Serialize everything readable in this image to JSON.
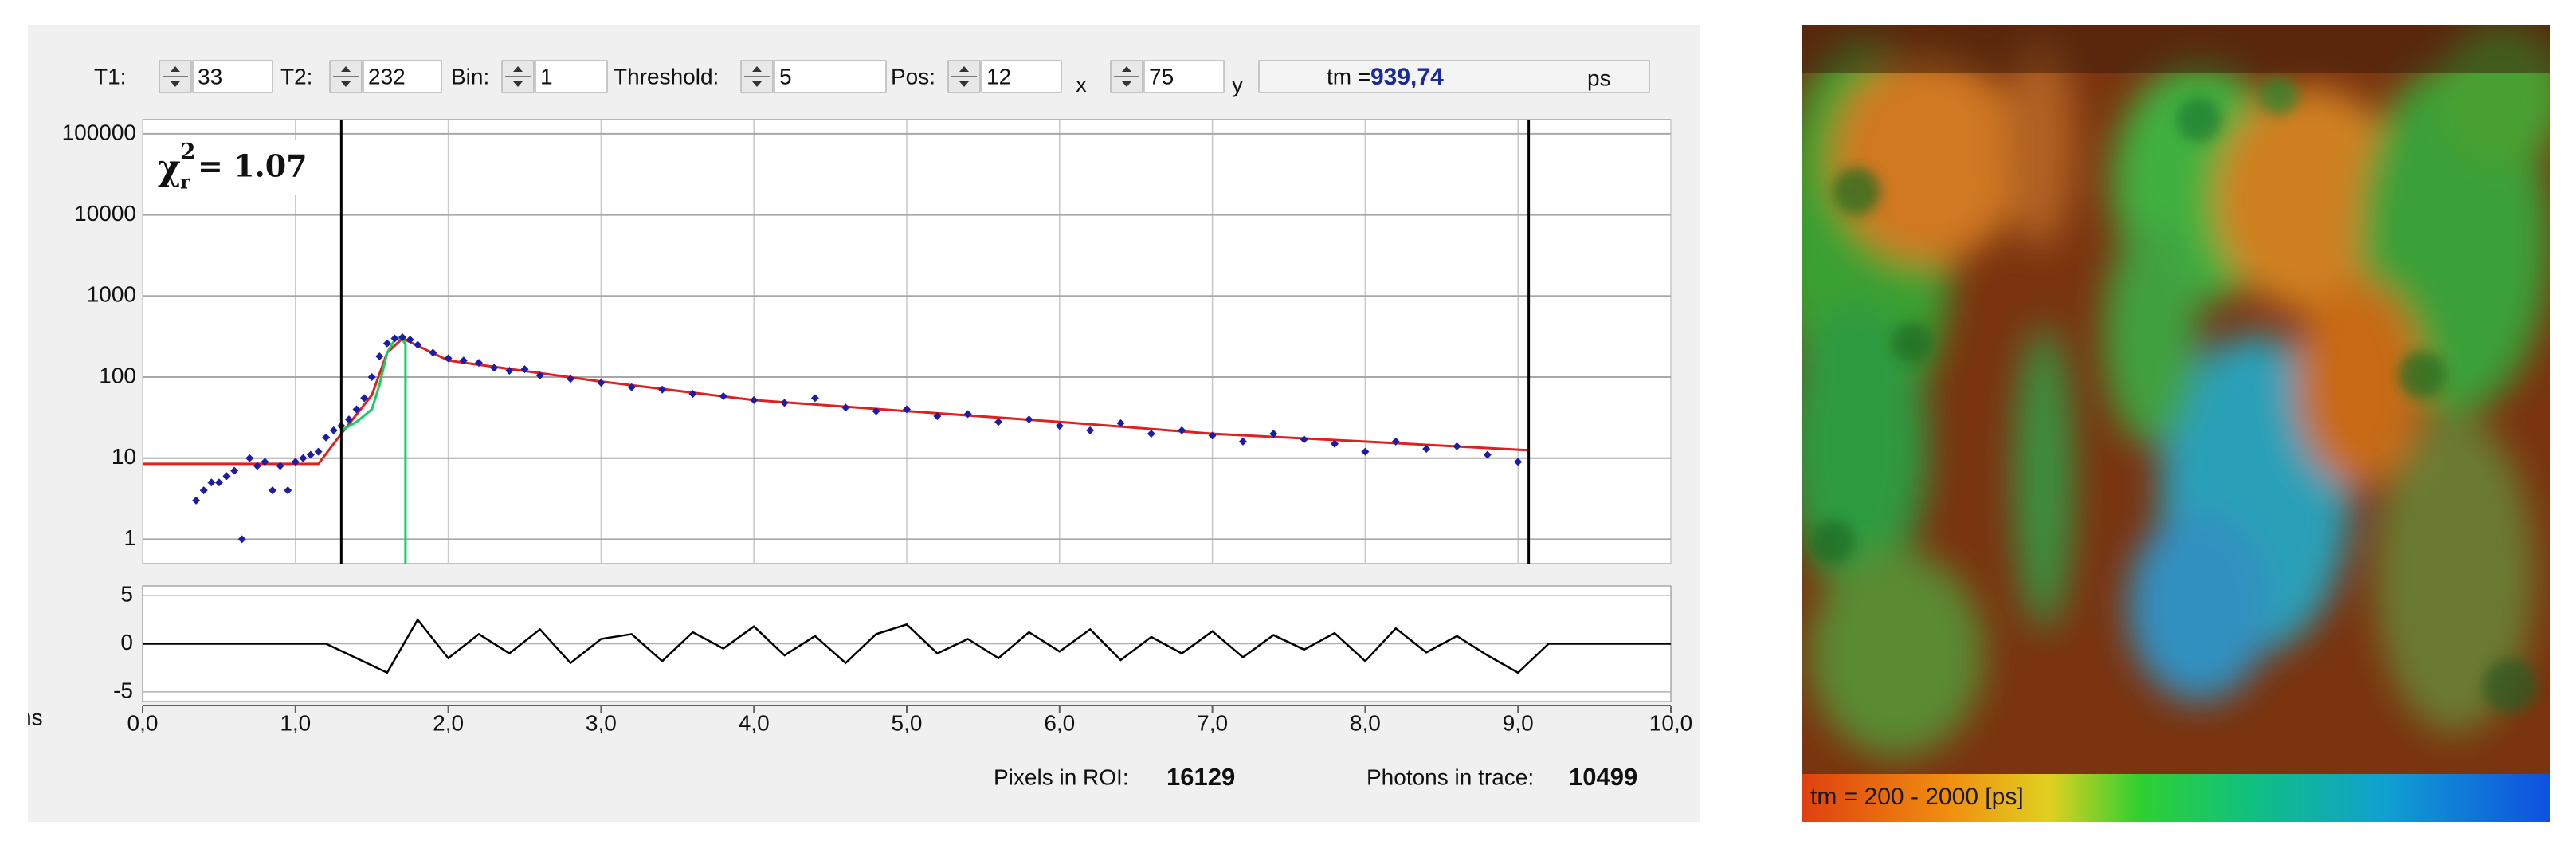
{
  "controls": [
    {
      "label": "T1:",
      "value": "33"
    },
    {
      "label": "T2:",
      "value": "232"
    },
    {
      "label": "Bin:",
      "value": "1"
    },
    {
      "label": "Threshold:",
      "value": "5"
    }
  ],
  "pos": {
    "label": "Pos:",
    "x_value": "12",
    "x_label": "x",
    "y_value": "75",
    "y_label": "y"
  },
  "tm": {
    "label": "tm =",
    "value": "939,74",
    "unit": "ps"
  },
  "chart_data": [
    {
      "type": "scatter",
      "log_y": true,
      "grid": true,
      "xlim": [
        0,
        10
      ],
      "xticks": [
        0,
        1,
        2,
        3,
        4,
        5,
        6,
        7,
        8,
        9,
        10
      ],
      "ylim": [
        0.5,
        150000
      ],
      "yticks": [
        1,
        10,
        100,
        1000,
        10000,
        100000
      ],
      "cursors": [
        1.3,
        9.07
      ],
      "cursor_color": "#000000",
      "annotation": {
        "symbol": "χ",
        "sup": "2",
        "sub": "r",
        "text": "= 1.07"
      },
      "series": [
        {
          "type": "scatter",
          "color": "#1c1ca8",
          "x": [
            0.35,
            0.4,
            0.45,
            0.5,
            0.55,
            0.6,
            0.65,
            0.7,
            0.75,
            0.8,
            0.85,
            0.9,
            0.95,
            1.0,
            1.05,
            1.1,
            1.15,
            1.2,
            1.25,
            1.3,
            1.35,
            1.4,
            1.45,
            1.5,
            1.55,
            1.6,
            1.65,
            1.7,
            1.75,
            1.8,
            1.9,
            2.0,
            2.1,
            2.2,
            2.3,
            2.4,
            2.5,
            2.6,
            2.8,
            3.0,
            3.2,
            3.4,
            3.6,
            3.8,
            4.0,
            4.2,
            4.4,
            4.6,
            4.8,
            5.0,
            5.2,
            5.4,
            5.6,
            5.8,
            6.0,
            6.2,
            6.4,
            6.6,
            6.8,
            7.0,
            7.2,
            7.4,
            7.6,
            7.8,
            8.0,
            8.2,
            8.4,
            8.6,
            8.8,
            9.0
          ],
          "values": [
            3,
            4,
            5,
            5,
            6,
            7,
            1,
            10,
            8,
            9,
            4,
            8,
            4,
            9,
            10,
            11,
            12,
            18,
            22,
            25,
            30,
            40,
            55,
            100,
            180,
            260,
            300,
            310,
            290,
            250,
            200,
            170,
            160,
            150,
            130,
            120,
            125,
            105,
            95,
            85,
            75,
            70,
            62,
            58,
            52,
            48,
            55,
            42,
            38,
            40,
            33,
            35,
            28,
            30,
            25,
            22,
            27,
            20,
            22,
            19,
            16,
            20,
            17,
            15,
            12,
            16,
            13,
            14,
            11,
            9
          ]
        },
        {
          "type": "line",
          "color": "#e02020",
          "x": [
            0,
            1.15,
            1.3,
            1.5,
            1.6,
            1.7,
            2,
            3,
            4,
            5,
            6,
            7,
            8,
            9.07
          ],
          "values": [
            8.5,
            8.5,
            20,
            60,
            200,
            300,
            160,
            88,
            52,
            38,
            28,
            20,
            16,
            12.5
          ]
        },
        {
          "type": "line",
          "color": "#10d060",
          "x": [
            1.3,
            1.4,
            1.5,
            1.55,
            1.6,
            1.65,
            1.7,
            1.72,
            1.72
          ],
          "values": [
            22,
            28,
            40,
            80,
            200,
            290,
            300,
            250,
            0.5
          ]
        }
      ]
    },
    {
      "type": "line",
      "color": "#000000",
      "grid": true,
      "x_unit": "ns",
      "xlim": [
        0,
        10
      ],
      "xticks": [
        {
          "value": 0,
          "label": "0,0"
        },
        {
          "value": 1,
          "label": "1,0"
        },
        {
          "value": 2,
          "label": "2,0"
        },
        {
          "value": 3,
          "label": "3,0"
        },
        {
          "value": 4,
          "label": "4,0"
        },
        {
          "value": 5,
          "label": "5,0"
        },
        {
          "value": 6,
          "label": "6,0"
        },
        {
          "value": 7,
          "label": "7,0"
        },
        {
          "value": 8,
          "label": "8,0"
        },
        {
          "value": 9,
          "label": "9,0"
        },
        {
          "value": 10,
          "label": "10,0"
        }
      ],
      "ylim": [
        -6,
        6
      ],
      "yticks": [
        -5,
        0,
        5
      ],
      "x": [
        0,
        0.2,
        0.4,
        0.6,
        0.8,
        1.0,
        1.2,
        1.4,
        1.6,
        1.8,
        2.0,
        2.2,
        2.4,
        2.6,
        2.8,
        3.0,
        3.2,
        3.4,
        3.6,
        3.8,
        4.0,
        4.2,
        4.4,
        4.6,
        4.8,
        5.0,
        5.2,
        5.4,
        5.6,
        5.8,
        6.0,
        6.2,
        6.4,
        6.6,
        6.8,
        7.0,
        7.2,
        7.4,
        7.6,
        7.8,
        8.0,
        8.2,
        8.4,
        8.6,
        8.8,
        9.0,
        9.2,
        9.4,
        9.6,
        9.8,
        10.0
      ],
      "values": [
        0,
        0,
        0,
        0,
        0,
        0,
        0,
        -1.5,
        -3,
        2.5,
        -1.5,
        1,
        -1,
        1.5,
        -2,
        0.5,
        1,
        -1.8,
        1.2,
        -0.5,
        1.8,
        -1.2,
        0.8,
        -2,
        1,
        2,
        -1,
        0.5,
        -1.5,
        1.2,
        -0.8,
        1.5,
        -1.7,
        0.7,
        -1,
        1.3,
        -1.4,
        0.9,
        -0.6,
        1.1,
        -1.8,
        1.6,
        -0.9,
        0.8,
        -1.2,
        -3,
        0,
        0,
        0,
        0,
        0
      ]
    }
  ],
  "stats": [
    {
      "label": "Pixels in ROI:",
      "value": 16129
    },
    {
      "label": "Photons in trace:",
      "value": 10499
    }
  ],
  "image": {
    "caption": "tm = 200 - 2000 [ps]"
  }
}
